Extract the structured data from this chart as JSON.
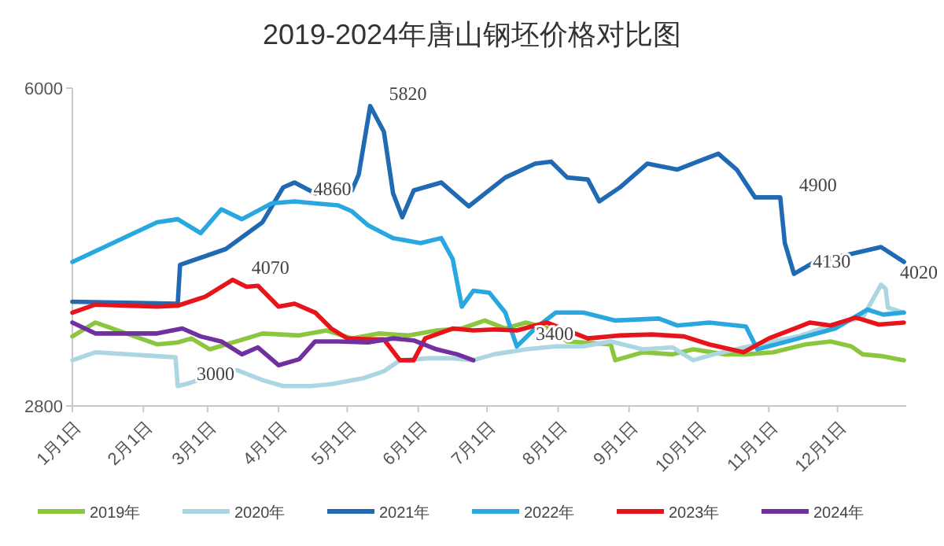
{
  "chart_data": {
    "type": "line",
    "title": "2019-2024年唐山钢坯价格对比图",
    "xlim": [
      "--01-01",
      "--12-31"
    ],
    "xticks": [
      {
        "value": "--01-01",
        "label": "1月1日"
      },
      {
        "value": "--02-01",
        "label": "2月1日"
      },
      {
        "value": "--03-01",
        "label": "3月1日"
      },
      {
        "value": "--04-01",
        "label": "4月1日"
      },
      {
        "value": "--05-01",
        "label": "5月1日"
      },
      {
        "value": "--06-01",
        "label": "6月1日"
      },
      {
        "value": "--07-01",
        "label": "7月1日"
      },
      {
        "value": "--08-01",
        "label": "8月1日"
      },
      {
        "value": "--09-01",
        "label": "9月1日"
      },
      {
        "value": "--10-01",
        "label": "10月1日"
      },
      {
        "value": "--11-01",
        "label": "11月1日"
      },
      {
        "value": "--12-01",
        "label": "12月1日"
      }
    ],
    "ylim": [
      2800,
      6000
    ],
    "yticks": [
      2800,
      6000
    ],
    "grid": false,
    "legend": "bottom",
    "marker": "none",
    "line_style": "solid",
    "series": [
      {
        "name": "2019年",
        "color": "#8cc63f",
        "x": [
          "--01-01",
          "--01-11",
          "--02-07",
          "--02-16",
          "--02-22",
          "--03-02",
          "--03-18",
          "--03-25",
          "--04-10",
          "--04-22",
          "--05-03",
          "--05-15",
          "--05-28",
          "--06-09",
          "--06-20",
          "--06-30",
          "--07-09",
          "--07-18",
          "--07-31",
          "--08-05",
          "--08-24",
          "--08-26",
          "--09-07",
          "--09-20",
          "--09-29",
          "--10-13",
          "--10-22",
          "--11-03",
          "--11-17",
          "--11-28",
          "--12-07",
          "--12-12",
          "--12-21",
          "--12-30"
        ],
        "values": [
          3500,
          3640,
          3420,
          3440,
          3480,
          3370,
          3480,
          3530,
          3510,
          3560,
          3480,
          3530,
          3510,
          3560,
          3580,
          3660,
          3580,
          3640,
          3560,
          3450,
          3420,
          3260,
          3340,
          3320,
          3370,
          3320,
          3320,
          3340,
          3420,
          3450,
          3400,
          3320,
          3300,
          3260
        ]
      },
      {
        "name": "2020年",
        "color": "#add6e3",
        "x": [
          "--01-01",
          "--01-11",
          "--02-15",
          "--02-16",
          "--02-21",
          "--03-02",
          "--03-14",
          "--03-25",
          "--04-03",
          "--04-15",
          "--04-24",
          "--05-08",
          "--05-17",
          "--05-24",
          "--06-06",
          "--06-16",
          "--06-25",
          "--07-04",
          "--07-18",
          "--07-31",
          "--08-12",
          "--08-24",
          "--09-07",
          "--09-20",
          "--09-29",
          "--10-08",
          "--10-27",
          "--11-14",
          "--12-02",
          "--12-12",
          "--12-20",
          "--12-22",
          "--12-23",
          "--12-30"
        ],
        "values": [
          3260,
          3340,
          3290,
          3000,
          3030,
          3100,
          3160,
          3060,
          3000,
          3000,
          3020,
          3080,
          3150,
          3260,
          3280,
          3280,
          3260,
          3320,
          3370,
          3400,
          3400,
          3450,
          3370,
          3390,
          3260,
          3320,
          3420,
          3500,
          3640,
          3690,
          4020,
          3980,
          3790,
          3740
        ]
      },
      {
        "name": "2021年",
        "color": "#1f6ab3",
        "x": [
          "--01-01",
          "--02-16",
          "--02-17",
          "--03-09",
          "--03-25",
          "--04-03",
          "--04-08",
          "--04-17",
          "--05-03",
          "--05-06",
          "--05-11",
          "--05-17",
          "--05-21",
          "--05-25",
          "--05-30",
          "--06-11",
          "--06-23",
          "--07-09",
          "--07-22",
          "--07-29",
          "--08-05",
          "--08-14",
          "--08-19",
          "--08-28",
          "--09-09",
          "--09-22",
          "--10-01",
          "--10-10",
          "--10-18",
          "--10-26",
          "--11-06",
          "--11-08",
          "--11-12",
          "--11-21",
          "--12-07",
          "--12-20",
          "--12-30"
        ],
        "values": [
          3850,
          3830,
          4220,
          4380,
          4650,
          5000,
          5050,
          4940,
          4970,
          5130,
          5820,
          5560,
          4940,
          4700,
          4970,
          5050,
          4810,
          5100,
          5240,
          5260,
          5100,
          5080,
          4860,
          5000,
          5240,
          5180,
          5260,
          5340,
          5180,
          4900,
          4900,
          4440,
          4130,
          4250,
          4330,
          4400,
          4250
        ]
      },
      {
        "name": "2022年",
        "color": "#29a8df",
        "x": [
          "--01-01",
          "--02-07",
          "--02-16",
          "--02-26",
          "--03-07",
          "--03-16",
          "--03-29",
          "--04-08",
          "--04-17",
          "--04-27",
          "--05-03",
          "--05-10",
          "--05-21",
          "--06-02",
          "--06-11",
          "--06-16",
          "--06-20",
          "--06-25",
          "--07-02",
          "--07-09",
          "--07-14",
          "--07-22",
          "--07-31",
          "--08-12",
          "--08-26",
          "--09-14",
          "--09-22",
          "--10-06",
          "--10-22",
          "--10-27",
          "--11-14",
          "--11-30",
          "--12-14",
          "--12-21",
          "--12-30"
        ],
        "values": [
          4250,
          4650,
          4680,
          4540,
          4780,
          4680,
          4840,
          4860,
          4840,
          4820,
          4760,
          4620,
          4490,
          4440,
          4490,
          4280,
          3800,
          3960,
          3940,
          3740,
          3400,
          3580,
          3740,
          3740,
          3660,
          3680,
          3610,
          3640,
          3600,
          3370,
          3480,
          3580,
          3770,
          3720,
          3740
        ]
      },
      {
        "name": "2023年",
        "color": "#e8141b",
        "x": [
          "--01-01",
          "--01-11",
          "--02-07",
          "--02-16",
          "--02-28",
          "--03-12",
          "--03-18",
          "--03-23",
          "--04-01",
          "--04-08",
          "--04-17",
          "--04-24",
          "--05-01",
          "--05-10",
          "--05-17",
          "--05-24",
          "--05-30",
          "--06-04",
          "--06-16",
          "--06-25",
          "--07-04",
          "--07-14",
          "--07-27",
          "--08-14",
          "--08-28",
          "--09-11",
          "--09-25",
          "--10-06",
          "--10-21",
          "--11-01",
          "--11-19",
          "--11-28",
          "--12-09",
          "--12-19",
          "--12-30"
        ],
        "values": [
          3740,
          3820,
          3800,
          3810,
          3900,
          4070,
          4000,
          4010,
          3800,
          3830,
          3740,
          3580,
          3480,
          3470,
          3470,
          3260,
          3260,
          3480,
          3580,
          3560,
          3570,
          3560,
          3640,
          3480,
          3510,
          3520,
          3500,
          3420,
          3340,
          3480,
          3640,
          3610,
          3690,
          3620,
          3640
        ]
      },
      {
        "name": "2024年",
        "color": "#7030a0",
        "x": [
          "--01-01",
          "--01-11",
          "--02-07",
          "--02-18",
          "--02-26",
          "--03-07",
          "--03-16",
          "--03-23",
          "--04-01",
          "--04-10",
          "--04-17",
          "--04-27",
          "--05-10",
          "--05-21",
          "--05-30",
          "--06-09",
          "--06-18",
          "--06-25"
        ],
        "values": [
          3640,
          3530,
          3530,
          3580,
          3500,
          3450,
          3320,
          3390,
          3210,
          3270,
          3450,
          3450,
          3440,
          3480,
          3460,
          3370,
          3320,
          3260
        ]
      }
    ],
    "annotations": [
      {
        "text": "5820",
        "x": "--05-11",
        "y": 5820
      },
      {
        "text": "4860",
        "x": "--04-08",
        "y": 4860
      },
      {
        "text": "4070",
        "x": "--03-12",
        "y": 4070
      },
      {
        "text": "3000",
        "x": "--02-16",
        "y": 3000
      },
      {
        "text": "3400",
        "x": "--07-14",
        "y": 3400
      },
      {
        "text": "4900",
        "x": "--11-06",
        "y": 4900
      },
      {
        "text": "4130",
        "x": "--11-12",
        "y": 4130
      },
      {
        "text": "4020",
        "x": "--12-20",
        "y": 4020
      }
    ]
  }
}
